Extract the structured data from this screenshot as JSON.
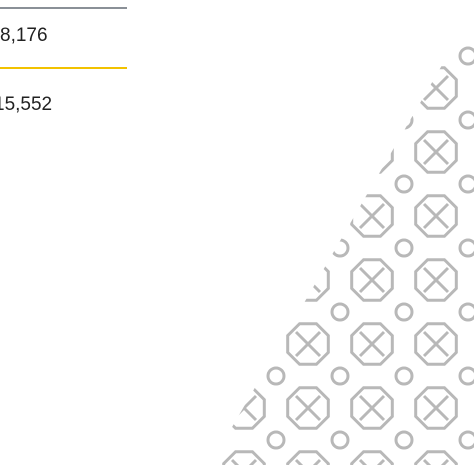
{
  "values": [
    "8,176",
    "15,552"
  ]
}
